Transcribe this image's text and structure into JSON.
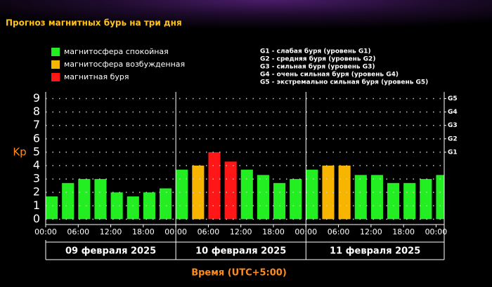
{
  "chart_data": {
    "type": "bar",
    "title": "Прогноз магнитных бурь на три дня",
    "ylabel": "Kp",
    "xlabel": "Время (UTC+5:00)",
    "legend": [
      {
        "name": "магнитосфера спокойная",
        "color": "#22ee22"
      },
      {
        "name": "магнитосфера возбужденная",
        "color": "#f7b500"
      },
      {
        "name": "магнитная буря",
        "color": "#ff1616"
      }
    ],
    "storm_levels": [
      "G1 - слабая буря (уровень G1)",
      "G2 - средняя буря (уровень G2)",
      "G3 - сильная буря (уровень G3)",
      "G4 - очень сильная буря (уровень G4)",
      "G5 - экстремально сильная буря (уровень G5)"
    ],
    "x": [
      0,
      3,
      6,
      9,
      12,
      15,
      18,
      21,
      24,
      27,
      30,
      33,
      36,
      39,
      42,
      45,
      48,
      51,
      54,
      57,
      60,
      63,
      66,
      69,
      72
    ],
    "values": [
      1.7,
      2.7,
      3,
      3,
      2,
      1.7,
      2,
      2.3,
      3.7,
      4,
      5,
      4.3,
      3.7,
      3.3,
      2.7,
      3,
      3.7,
      4,
      4,
      3.3,
      3.3,
      2.7,
      2.7,
      3,
      3.3
    ],
    "colors": [
      "#22ee22",
      "#22ee22",
      "#22ee22",
      "#22ee22",
      "#22ee22",
      "#22ee22",
      "#22ee22",
      "#22ee22",
      "#22ee22",
      "#f7b500",
      "#ff1616",
      "#ff1616",
      "#22ee22",
      "#22ee22",
      "#22ee22",
      "#22ee22",
      "#22ee22",
      "#f7b500",
      "#f7b500",
      "#22ee22",
      "#22ee22",
      "#22ee22",
      "#22ee22",
      "#22ee22",
      "#22ee22"
    ],
    "xlim": [
      0,
      73.5
    ],
    "xticks": [
      {
        "value": 0,
        "label": "00:00"
      },
      {
        "value": 6,
        "label": "06:00"
      },
      {
        "value": 12,
        "label": "12:00"
      },
      {
        "value": 18,
        "label": "18:00"
      },
      {
        "value": 24,
        "label": "00:00"
      },
      {
        "value": 30,
        "label": "06:00"
      },
      {
        "value": 36,
        "label": "12:00"
      },
      {
        "value": 42,
        "label": "18:00"
      },
      {
        "value": 48,
        "label": "00:00"
      },
      {
        "value": 54,
        "label": "06:00"
      },
      {
        "value": 60,
        "label": "12:00"
      },
      {
        "value": 66,
        "label": "18:00"
      },
      {
        "value": 72,
        "label": "00:00"
      }
    ],
    "days": [
      {
        "value": 0,
        "label": "09 февраля 2025"
      },
      {
        "value": 24,
        "label": "10 февраля 2025"
      },
      {
        "value": 48,
        "label": "11 февраля 2025"
      }
    ],
    "ylim": [
      -0.4,
      9.5
    ],
    "yticks": [
      0,
      1,
      2,
      3,
      4,
      5,
      6,
      7,
      8,
      9
    ],
    "y2ticks": [
      {
        "value": 5,
        "label": "G1"
      },
      {
        "value": 6,
        "label": "G2"
      },
      {
        "value": 7,
        "label": "G3"
      },
      {
        "value": 8,
        "label": "G4"
      },
      {
        "value": 9,
        "label": "G5"
      }
    ],
    "grid": true
  }
}
